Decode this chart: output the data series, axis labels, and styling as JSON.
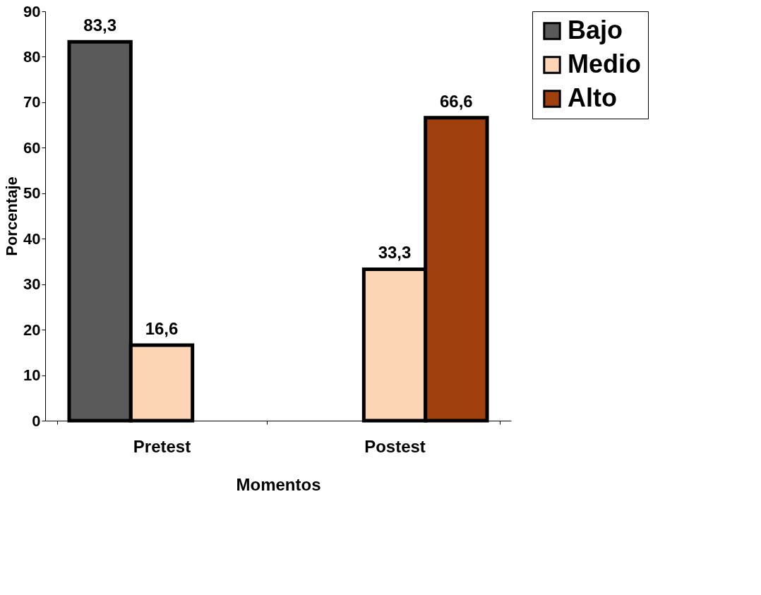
{
  "chart_data": {
    "type": "bar",
    "xlabel": "Momentos",
    "ylabel": "Porcentaje",
    "categories": [
      "Pretest",
      "Postest"
    ],
    "series": [
      {
        "name": "Bajo",
        "color": "#5a5a5a",
        "values": [
          83.3,
          null
        ],
        "value_labels": [
          "83,3",
          null
        ]
      },
      {
        "name": "Medio",
        "color": "#fcd5b4",
        "values": [
          16.6,
          33.3
        ],
        "value_labels": [
          "16,6",
          "33,3"
        ]
      },
      {
        "name": "Alto",
        "color": "#a0400f",
        "values": [
          null,
          66.6
        ],
        "value_labels": [
          null,
          "66,6"
        ]
      }
    ],
    "ylim": [
      0,
      90
    ],
    "yticks": [
      0,
      10,
      20,
      30,
      40,
      50,
      60,
      70,
      80,
      90
    ],
    "grid": false,
    "legend": "top right"
  }
}
